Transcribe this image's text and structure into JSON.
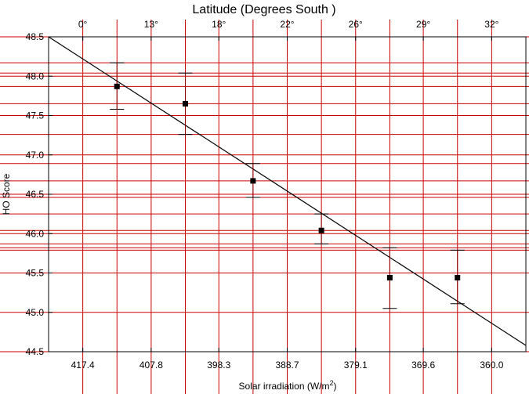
{
  "chart_data": {
    "type": "scatter",
    "title": "Latitude (Degrees South )",
    "xlabel": "Solar irradiation (W/m",
    "xlabel_sup": "2",
    "xlabel_close": ")",
    "ylabel": "HO Score",
    "top_axis_ticks": [
      "0°",
      "13°",
      "18°",
      "22°",
      "26°",
      "29°",
      "32°"
    ],
    "bottom_axis_ticks": [
      "417.4",
      "407.8",
      "398.3",
      "388.7",
      "379.1",
      "369.6",
      "360.0"
    ],
    "x_tick_values": [
      417.4,
      407.8,
      398.3,
      388.7,
      379.1,
      369.6,
      360.0
    ],
    "xlim": [
      422.2,
      355.2
    ],
    "ylim": [
      44.5,
      48.5
    ],
    "y_ticks": [
      "44.5",
      "45.0",
      "45.5",
      "46.0",
      "46.5",
      "47.0",
      "47.5",
      "48.0",
      "48.5"
    ],
    "y_tick_values": [
      44.5,
      45.0,
      45.5,
      46.0,
      46.5,
      47.0,
      47.5,
      48.0,
      48.5
    ],
    "series": [
      {
        "x": [
          412.6,
          403.0,
          393.5,
          383.9,
          374.3,
          364.8
        ],
        "y": [
          47.87,
          47.65,
          46.67,
          46.04,
          45.44,
          45.44
        ],
        "error_low": [
          47.58,
          47.26,
          46.46,
          45.87,
          45.05,
          45.11
        ],
        "error_high": [
          48.17,
          48.04,
          46.89,
          46.25,
          45.82,
          45.79
        ]
      }
    ],
    "fit_line": {
      "x": [
        422.2,
        355.2
      ],
      "y": [
        48.5,
        44.58
      ]
    },
    "red_gridlines_y": [
      48.17,
      48.04,
      47.87,
      47.65,
      47.26,
      46.89,
      46.67,
      46.46,
      46.25,
      46.04,
      45.87,
      45.82,
      45.79
    ],
    "colors": {
      "grid": "#cc0000",
      "axis": "#000000",
      "marker": "#000000",
      "errorbar": "#8b0000",
      "fit": "#000000"
    }
  }
}
